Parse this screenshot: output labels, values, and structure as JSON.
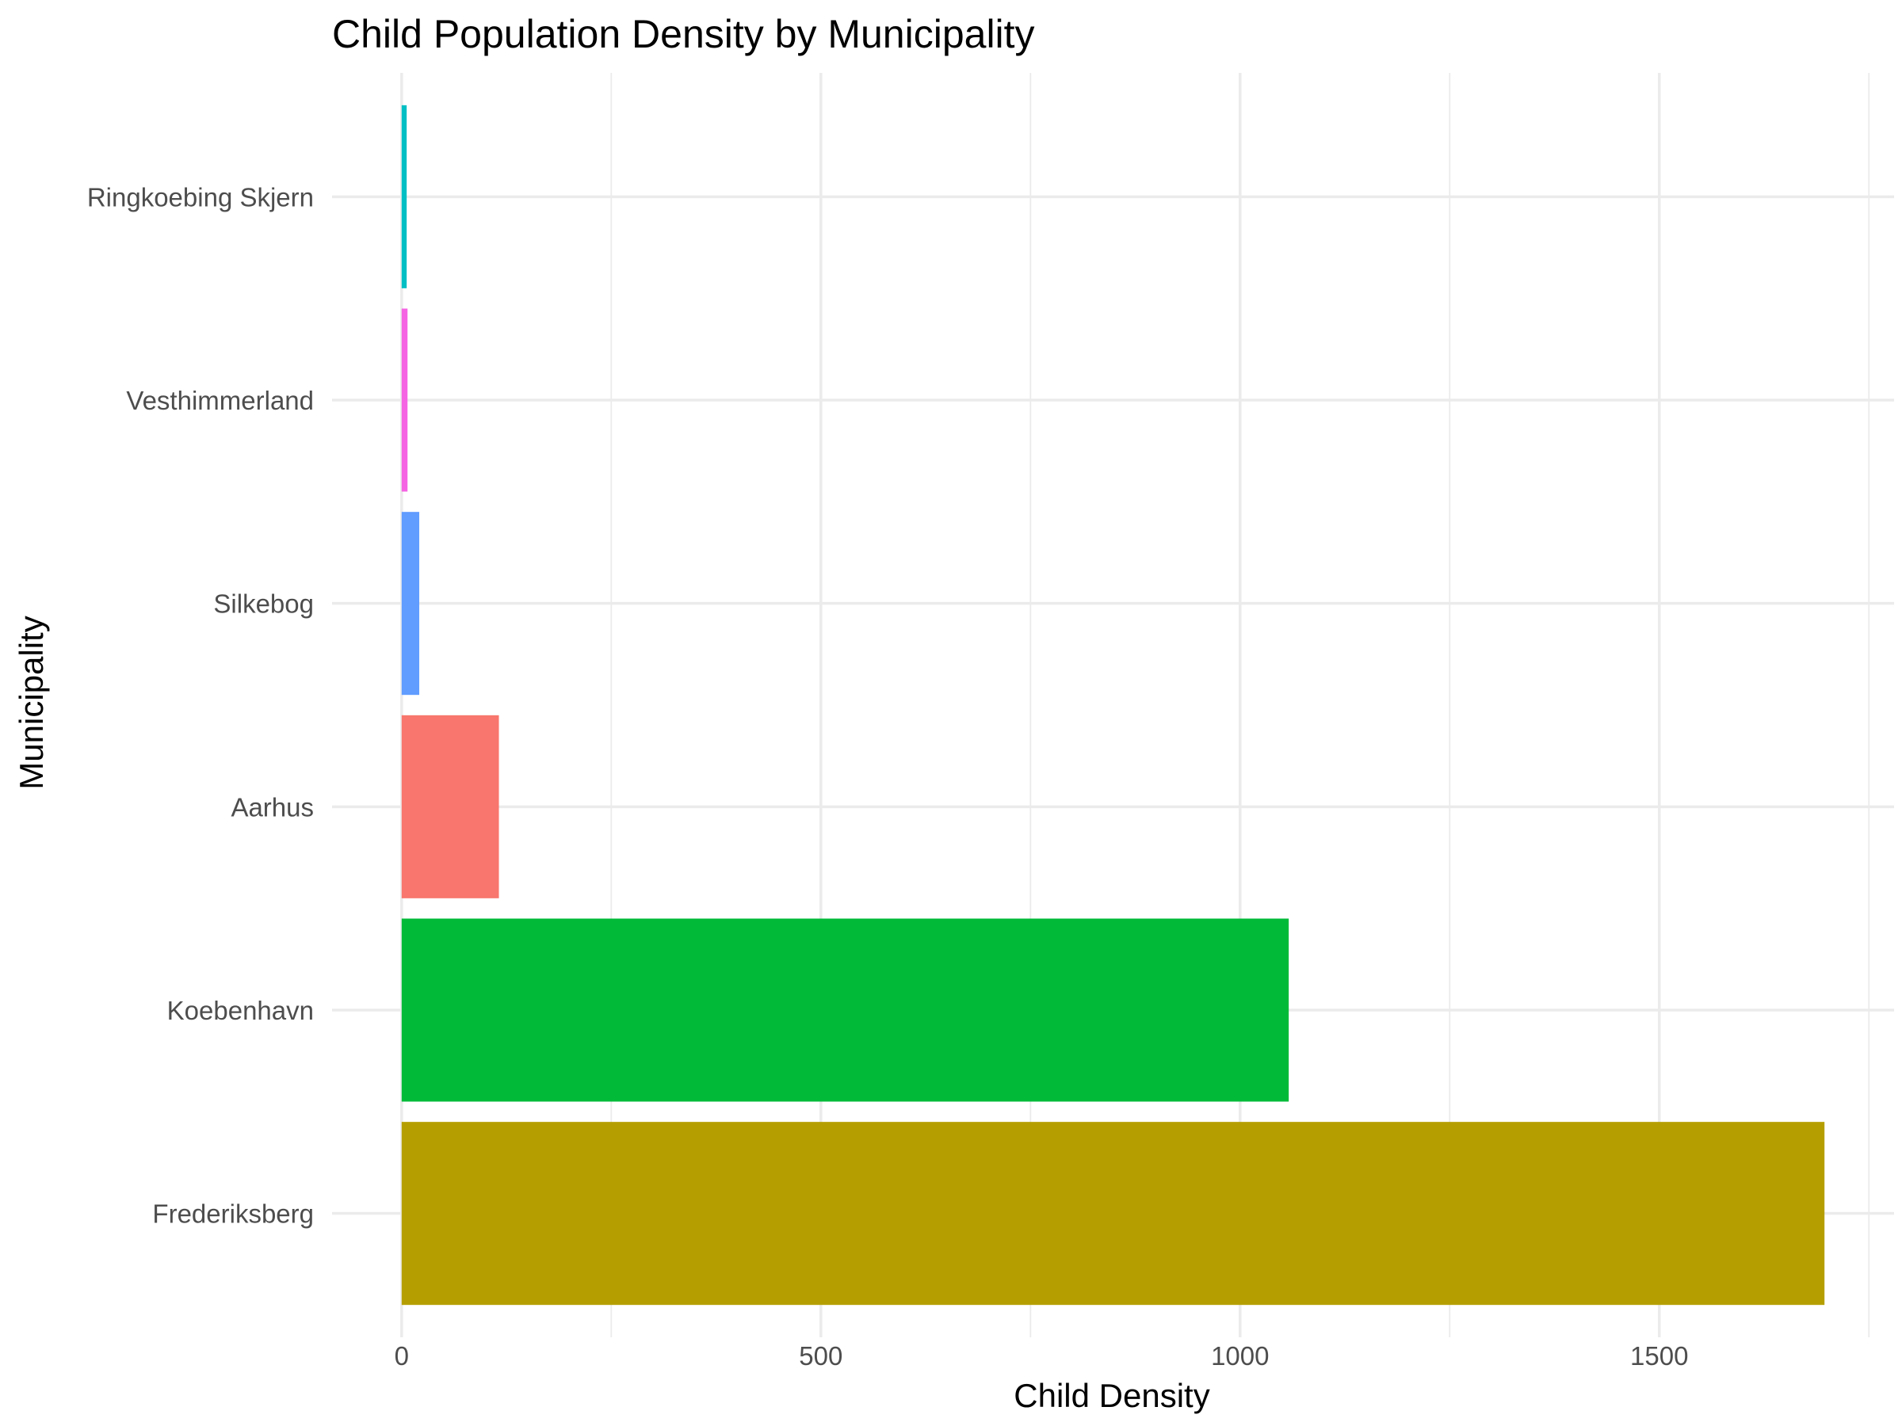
{
  "chart_data": {
    "type": "bar",
    "orientation": "horizontal",
    "title": "Child Population Density by Municipality",
    "xlabel": "Child Density",
    "ylabel": "Municipality",
    "categories": [
      "Frederiksberg",
      "Koebenhavn",
      "Aarhus",
      "Silkebog",
      "Vesthimmerland",
      "Ringkoebing Skjern"
    ],
    "values": [
      1697,
      1058,
      116,
      21,
      7,
      6
    ],
    "colors": [
      "#b59f00",
      "#00ba38",
      "#f8766d",
      "#619cff",
      "#f564e3",
      "#00bfc4"
    ],
    "xlim": [
      -83,
      1780
    ],
    "xticks": [
      0,
      500,
      1000,
      1500
    ],
    "xtick_labels": [
      "0",
      "500",
      "1000",
      "1500"
    ],
    "xminor": [
      250,
      750,
      1250,
      1750
    ],
    "grid": true,
    "legend": "none"
  }
}
